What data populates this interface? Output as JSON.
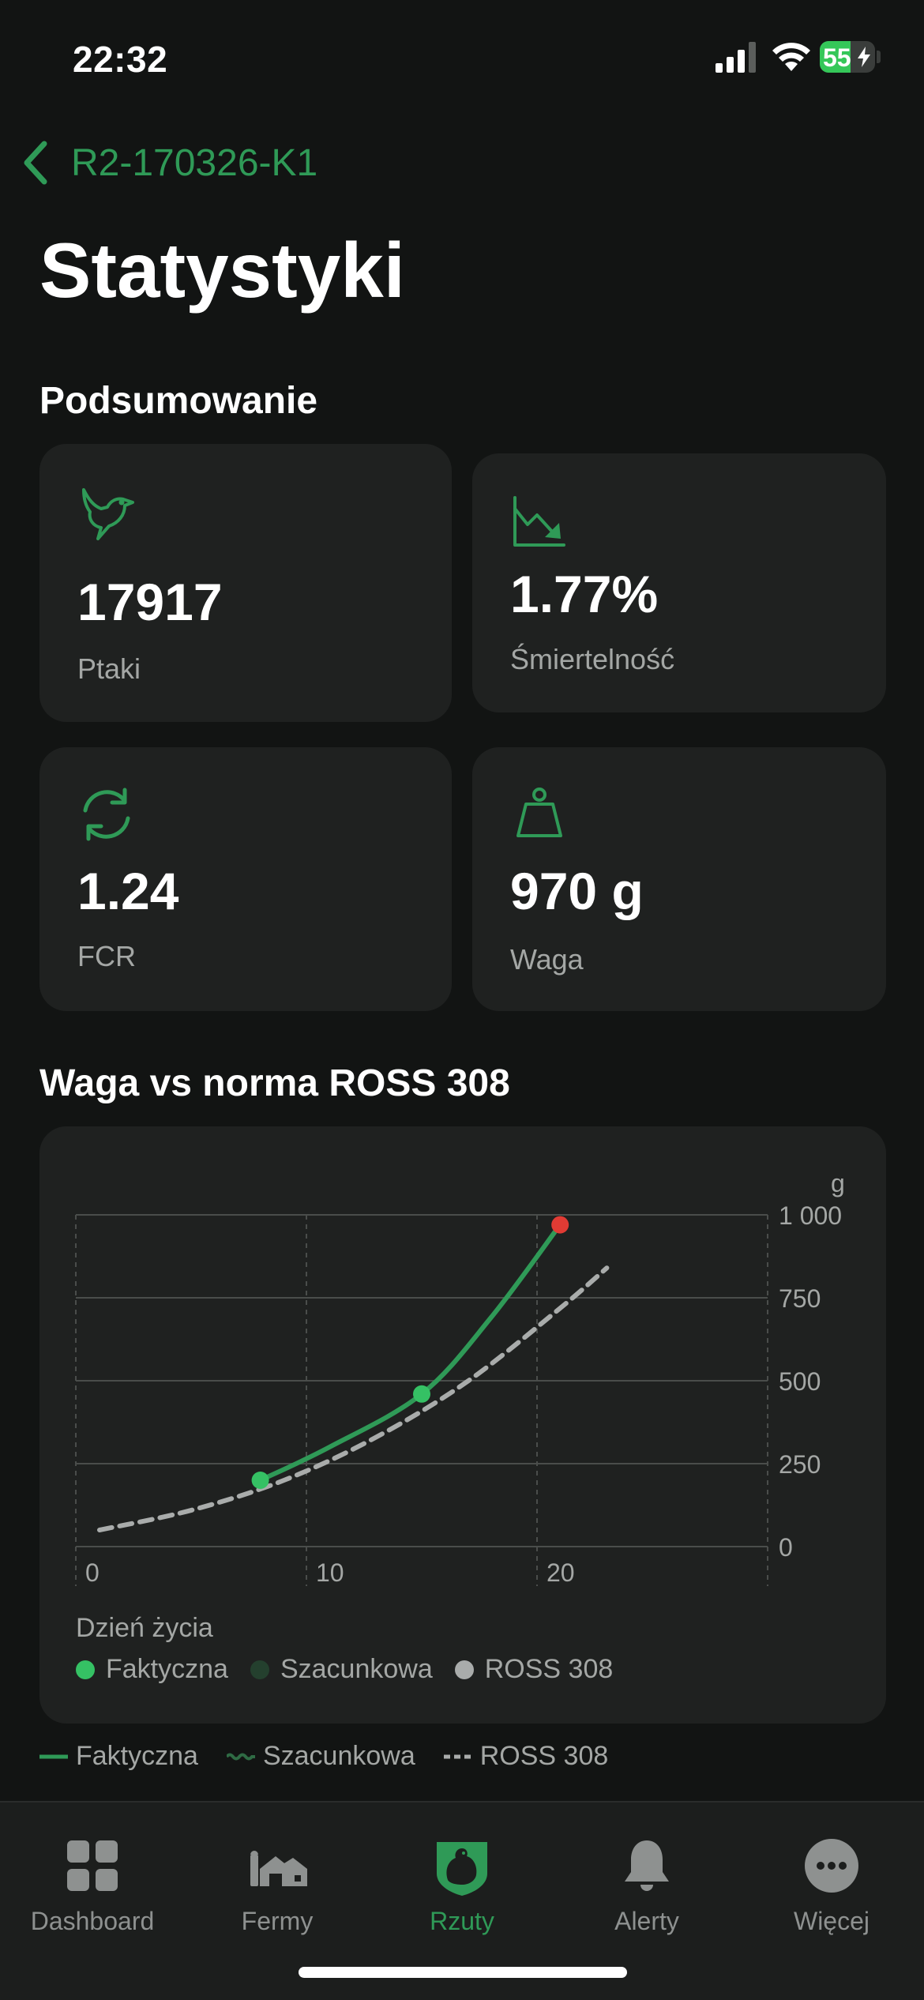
{
  "status_bar": {
    "time": "22:32",
    "battery_percent": "55",
    "battery_level": 0.55
  },
  "nav": {
    "back_label": "R2-170326-K1"
  },
  "page_title": "Statystyki",
  "summary": {
    "title": "Podsumowanie",
    "cards": [
      {
        "icon": "bird-icon",
        "value": "17917",
        "label": "Ptaki"
      },
      {
        "icon": "chart-down-icon",
        "value": "1.77%",
        "label": "Śmiertelność"
      },
      {
        "icon": "refresh-icon",
        "value": "1.24",
        "label": "FCR"
      },
      {
        "icon": "weight-icon",
        "value": "970 g",
        "label": "Waga"
      }
    ]
  },
  "chart_section_title": "Waga vs norma ROSS 308",
  "chart_data": {
    "type": "line",
    "title": "Waga vs norma ROSS 308",
    "xlabel": "Dzień życia",
    "ylabel": "g",
    "xlim": [
      0,
      30
    ],
    "ylim": [
      0,
      1000
    ],
    "x_ticks": [
      0,
      10,
      20
    ],
    "y_ticks": [
      0,
      250,
      500,
      750,
      1000
    ],
    "y_tick_labels": [
      "0",
      "250",
      "500",
      "750",
      "1 000"
    ],
    "x_tick_labels": [
      "0",
      "10",
      "20"
    ],
    "grid": true,
    "y_axis_position": "right",
    "legend_placement": "bottom",
    "series": [
      {
        "name": "Faktyczna",
        "color": "#2f9a57",
        "style": "solid",
        "x": [
          8,
          11,
          15,
          18,
          21
        ],
        "y": [
          200,
          300,
          460,
          690,
          970
        ],
        "markers_at": [
          8,
          15
        ]
      },
      {
        "name": "ROSS 308",
        "color": "#a9acab",
        "style": "dashed",
        "x": [
          0,
          4,
          8,
          12,
          16,
          20,
          22
        ],
        "y": [
          50,
          110,
          200,
          330,
          500,
          720,
          840
        ]
      }
    ],
    "highlight_point": {
      "x": 21,
      "y": 970,
      "color": "#e13b34"
    }
  },
  "chart_legend": [
    {
      "label": "Faktyczna",
      "color": "#35c164"
    },
    {
      "label": "Szacunkowa",
      "color": "#24402e"
    },
    {
      "label": "ROSS 308",
      "color": "#a9acab"
    }
  ],
  "line_legend": [
    {
      "label": "Faktyczna",
      "style": "solid",
      "color": "#2f9a57"
    },
    {
      "label": "Szacunkowa",
      "style": "wavy",
      "color": "#2f6b44"
    },
    {
      "label": "ROSS 308",
      "style": "dashed",
      "color": "#a9acab"
    }
  ],
  "tabs": [
    {
      "label": "Dashboard",
      "icon": "grid-icon",
      "active": false
    },
    {
      "label": "Fermy",
      "icon": "farm-icon",
      "active": false
    },
    {
      "label": "Rzuty",
      "icon": "chicken-shield-icon",
      "active": true
    },
    {
      "label": "Alerty",
      "icon": "bell-icon",
      "active": false
    },
    {
      "label": "Więcej",
      "icon": "more-icon",
      "active": false
    }
  ],
  "colors": {
    "accent": "#2f9a57",
    "background": "#121413",
    "card": "#1f2120",
    "muted": "#a4a7a5",
    "danger": "#e13b34"
  }
}
